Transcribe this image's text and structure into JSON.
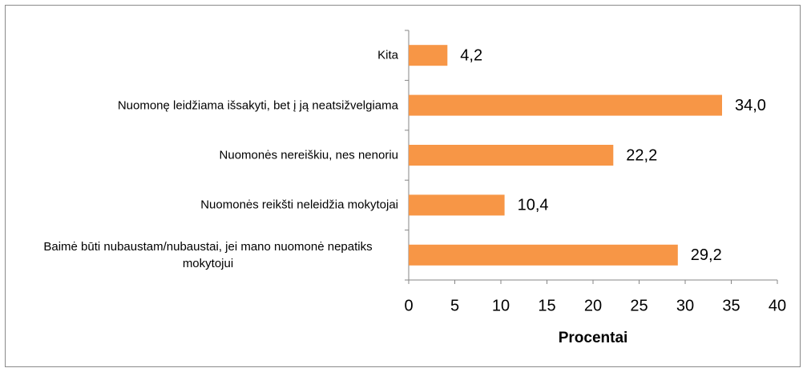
{
  "chart_data": {
    "type": "bar",
    "orientation": "horizontal",
    "categories": [
      "Kita",
      "Nuomonę leidžiama išsakyti, bet į ją neatsižvelgiama",
      "Nuomonės nereiškiu, nes nenoriu",
      "Nuomonės reikšti neleidžia mokytojai",
      "Baimė būti nubaustam/nubaustai, jei mano nuomonė nepatiks mokytojui"
    ],
    "values": [
      4.2,
      34.0,
      22.2,
      10.4,
      29.2
    ],
    "value_labels": [
      "4,2",
      "34,0",
      "22,2",
      "10,4",
      "29,2"
    ],
    "color": "#f79646",
    "xlim": [
      0,
      40
    ],
    "xticks": [
      0,
      5,
      10,
      15,
      20,
      25,
      30,
      35,
      40
    ],
    "xlabel": "Procentai",
    "grid": false
  }
}
